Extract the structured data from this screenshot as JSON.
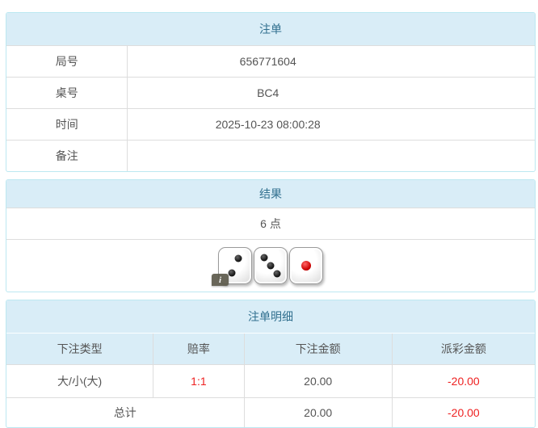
{
  "colors": {
    "panel_border": "#bce8f1",
    "heading_bg": "#d9edf7",
    "heading_text": "#31708f",
    "row_border": "#dddddd",
    "body_text": "#555555",
    "negative_text": "#ee2222"
  },
  "bet_order": {
    "title": "注单",
    "rows": [
      {
        "label": "局号",
        "value": "656771604"
      },
      {
        "label": "桌号",
        "value": "BC4"
      },
      {
        "label": "时间",
        "value": "2025-10-23 08:00:28"
      },
      {
        "label": "备注",
        "value": ""
      }
    ]
  },
  "result": {
    "title": "结果",
    "points": "6 点",
    "dice": [
      {
        "value": 2,
        "color": "black"
      },
      {
        "value": 3,
        "color": "black"
      },
      {
        "value": 1,
        "color": "red"
      }
    ],
    "info_icon": "i"
  },
  "bet_details": {
    "title": "注单明细",
    "columns": [
      "下注类型",
      "赔率",
      "下注金额",
      "派彩金额"
    ],
    "rows": [
      {
        "type": "大/小(大)",
        "odds": "1:1",
        "bet": "20.00",
        "payout": "-20.00"
      }
    ],
    "total": {
      "label": "总计",
      "bet": "20.00",
      "payout": "-20.00"
    }
  }
}
